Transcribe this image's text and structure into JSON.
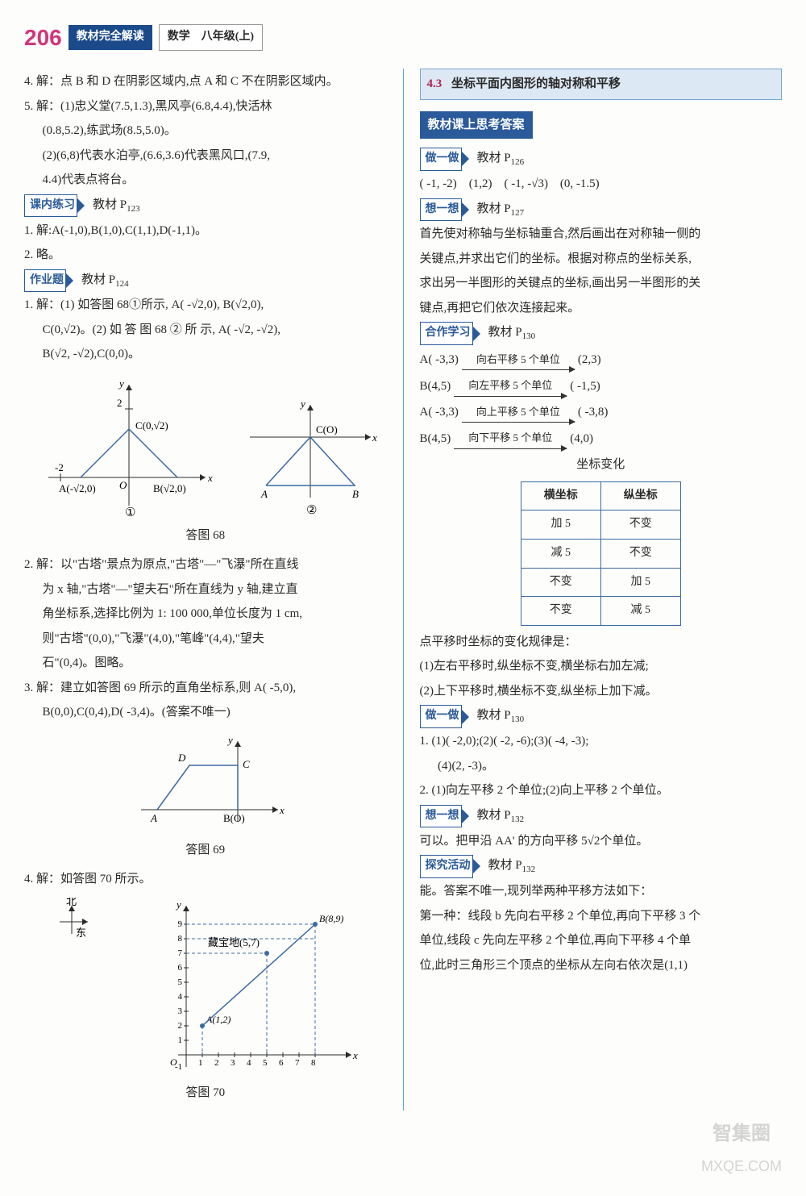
{
  "header": {
    "page_num": "206",
    "badge1": "教材完全解读",
    "badge2": "数学　八年级(上)"
  },
  "left": {
    "p4": "4. 解：点 B 和 D 在阴影区域内,点 A 和 C 不在阴影区域内。",
    "p5a": "5. 解：(1)忠义堂(7.5,1.3),黑风亭(6.8,4.4),快活林",
    "p5b": "(0.8,5.2),练武场(8.5,5.0)。",
    "p5c": "(2)(6,8)代表水泊亭,(6.6,3.6)代表黑风口,(7.9,",
    "p5d": "4.4)代表点将台。",
    "lab_knlx": "课内练习",
    "knlx_ref": "教材 P",
    "knlx_page": "123",
    "knlx1": "1. 解:A(-1,0),B(1,0),C(1,1),D(-1,1)。",
    "knlx2": "2. 略。",
    "lab_zyt": "作业题",
    "zyt_ref": "教材 P",
    "zyt_page": "124",
    "zyt1a": "1. 解：(1) 如答图 68①所示, A( -√2,0), B(√2,0),",
    "zyt1b": "C(0,√2)。(2) 如 答 图 68 ② 所 示, A( -√2, -√2),",
    "zyt1c": "B(√2, -√2),C(0,0)。",
    "fig68": {
      "label1_C": "C(0,√2)",
      "label1_A": "A(-√2,0)",
      "label1_B": "B(√2,0)",
      "label2_CO": "C(O)",
      "label2_A": "A",
      "label2_B": "B",
      "sub1": "①",
      "sub2": "②",
      "caption": "答图 68",
      "axis_color": "#2a2a2a",
      "line_color": "#3a6aa5"
    },
    "zyt2a": "2. 解：以\"古塔\"景点为原点,\"古塔\"—\"飞瀑\"所在直线",
    "zyt2b": "为 x 轴,\"古塔\"—\"望夫石\"所在直线为 y 轴,建立直",
    "zyt2c": "角坐标系,选择比例为 1: 100 000,单位长度为 1 cm,",
    "zyt2d": "则\"古塔\"(0,0),\"飞瀑\"(4,0),\"笔峰\"(4,4),\"望夫",
    "zyt2e": "石\"(0,4)。图略。",
    "zyt3a": "3. 解：建立如答图 69 所示的直角坐标系,则 A( -5,0),",
    "zyt3b": "B(0,0),C(0,4),D( -3,4)。(答案不唯一)",
    "fig69": {
      "label_D": "D",
      "label_C": "C",
      "label_A": "A",
      "label_BO": "B(O)",
      "caption": "答图 69",
      "line_color": "#3a6aa5"
    },
    "zyt4": "4. 解：如答图 70 所示。",
    "fig70": {
      "north": "北",
      "east": "东",
      "treasure": "藏宝地(5,7)",
      "ptB": "B(8,9)",
      "ptA": "A(1,2)",
      "caption": "答图 70",
      "line_color": "#3a6aa5",
      "dash_color": "#3a6aa5"
    }
  },
  "right": {
    "sec_num": "4.3",
    "sec_title": "坐标平面内图形的轴对称和平移",
    "bar_title": "教材课上思考答案",
    "lab_zyz1": "做一做",
    "zyz1_ref": "教材 P",
    "zyz1_page": "126",
    "zyz1_line": "( -1, -2)　(1,2)　( -1, -√3)　(0, -1.5)",
    "lab_xyx": "想一想",
    "xyx_ref": "教材 P",
    "xyx_page": "127",
    "xyx_a": "首先使对称轴与坐标轴重合,然后画出在对称轴一侧的",
    "xyx_b": "关键点,并求出它们的坐标。根据对称点的坐标关系,",
    "xyx_c": "求出另一半图形的关键点的坐标,画出另一半图形的关",
    "xyx_d": "键点,再把它们依次连接起来。",
    "lab_hzxx": "合作学习",
    "hzxx_ref": "教材 P",
    "hzxx_page": "130",
    "arrows": [
      {
        "from": "A( -3,3)",
        "label": "向右平移 5 个单位",
        "to": "(2,3)"
      },
      {
        "from": "B(4,5)",
        "label": "向左平移 5 个单位",
        "to": "( -1,5)"
      },
      {
        "from": "A( -3,3)",
        "label": "向上平移 5 个单位",
        "to": "( -3,8)"
      },
      {
        "from": "B(4,5)",
        "label": "向下平移 5 个单位",
        "to": "(4,0)"
      }
    ],
    "table": {
      "title": "坐标变化",
      "head": [
        "横坐标",
        "纵坐标"
      ],
      "rows": [
        [
          "加 5",
          "不变"
        ],
        [
          "减 5",
          "不变"
        ],
        [
          "不变",
          "加 5"
        ],
        [
          "不变",
          "减 5"
        ]
      ]
    },
    "rule_title": "点平移时坐标的变化规律是：",
    "rule1": "(1)左右平移时,纵坐标不变,横坐标右加左减;",
    "rule2": "(2)上下平移时,横坐标不变,纵坐标上加下减。",
    "lab_zyz2": "做一做",
    "zyz2_ref": "教材 P",
    "zyz2_page": "130",
    "zyz2_1a": "1. (1)( -2,0);(2)( -2, -6);(3)( -4, -3);",
    "zyz2_1b": "(4)(2, -3)。",
    "zyz2_2": "2. (1)向左平移 2 个单位;(2)向上平移 2 个单位。",
    "lab_xyx2": "想一想",
    "xyx2_ref": "教材 P",
    "xyx2_page": "132",
    "xyx2_line": "可以。把甲沿 AA' 的方向平移 5√2个单位。",
    "lab_tjhd": "探究活动",
    "tjhd_ref": "教材 P",
    "tjhd_page": "132",
    "tjhd_a": "能。答案不唯一,现列举两种平移方法如下：",
    "tjhd_b": "第一种：线段 b 先向右平移 2 个单位,再向下平移 3 个",
    "tjhd_c": "单位,线段 c 先向左平移 2 个单位,再向下平移 4 个单",
    "tjhd_d": "位,此时三角形三个顶点的坐标从左向右依次是(1,1)"
  },
  "watermark": {
    "l1": "智集圈",
    "l2": "MXQE.COM"
  }
}
